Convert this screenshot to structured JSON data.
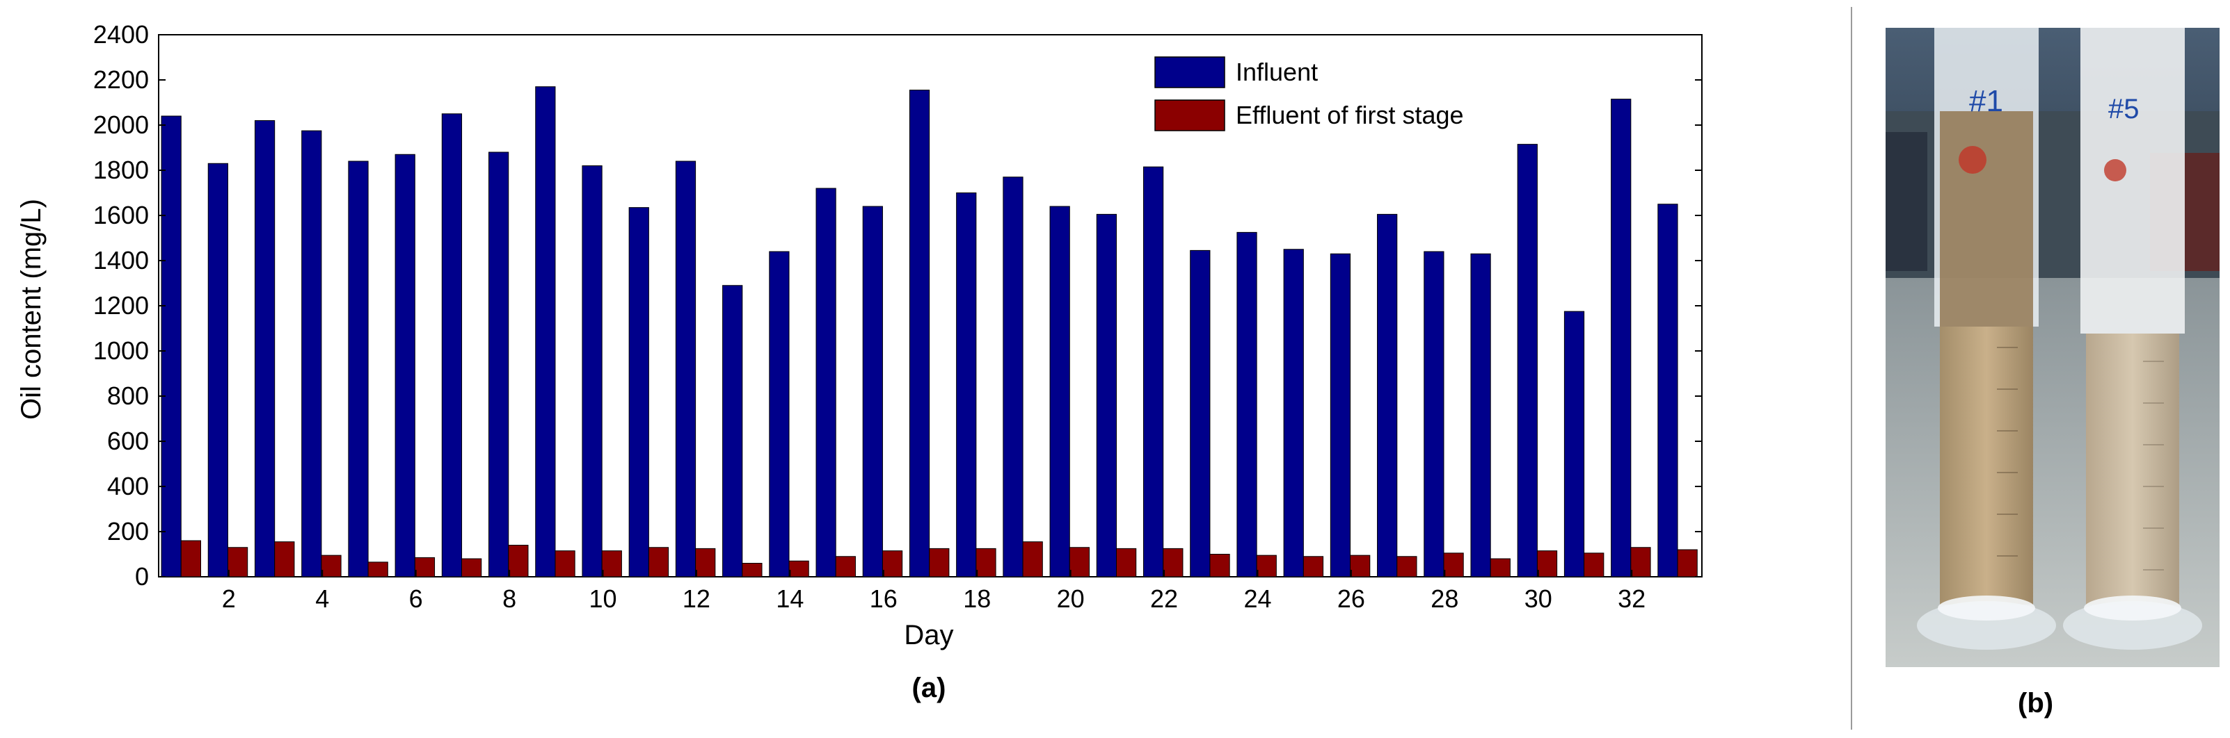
{
  "chart_data": {
    "type": "bar",
    "x": [
      1,
      2,
      3,
      4,
      5,
      6,
      7,
      8,
      9,
      10,
      11,
      12,
      13,
      14,
      15,
      16,
      17,
      18,
      19,
      20,
      21,
      22,
      23,
      24,
      25,
      26,
      27,
      28,
      29,
      30,
      31,
      32,
      33
    ],
    "xticks": [
      2,
      4,
      6,
      8,
      10,
      12,
      14,
      16,
      18,
      20,
      22,
      24,
      26,
      28,
      30,
      32
    ],
    "xlabel": "Day",
    "ylabel": "Oil content (mg/L)",
    "ylim": [
      0,
      2400
    ],
    "yticks": [
      0,
      200,
      400,
      600,
      800,
      1000,
      1200,
      1400,
      1600,
      1800,
      2000,
      2200,
      2400
    ],
    "grid": false,
    "legend_position": "top-right",
    "series": [
      {
        "name": "Influent",
        "color": "#00008b",
        "values": [
          2040,
          1830,
          2020,
          1975,
          1840,
          1870,
          2050,
          1880,
          2170,
          1820,
          1635,
          1840,
          1290,
          1440,
          1720,
          1640,
          2155,
          1700,
          1770,
          1640,
          1605,
          1815,
          1445,
          1525,
          1450,
          1430,
          1605,
          1440,
          1430,
          1915,
          1175,
          2115,
          1650
        ]
      },
      {
        "name": "Effluent of first stage",
        "color": "#8b0000",
        "values": [
          160,
          130,
          155,
          95,
          65,
          85,
          80,
          140,
          115,
          115,
          130,
          125,
          60,
          70,
          90,
          115,
          125,
          125,
          155,
          130,
          125,
          125,
          100,
          95,
          90,
          95,
          90,
          105,
          80,
          115,
          105,
          130,
          120
        ]
      }
    ]
  },
  "panel_labels": {
    "a": "(a)",
    "b": "(b)"
  },
  "photo": {
    "left_cylinder_label": "#1",
    "right_cylinder_label": "#5"
  }
}
